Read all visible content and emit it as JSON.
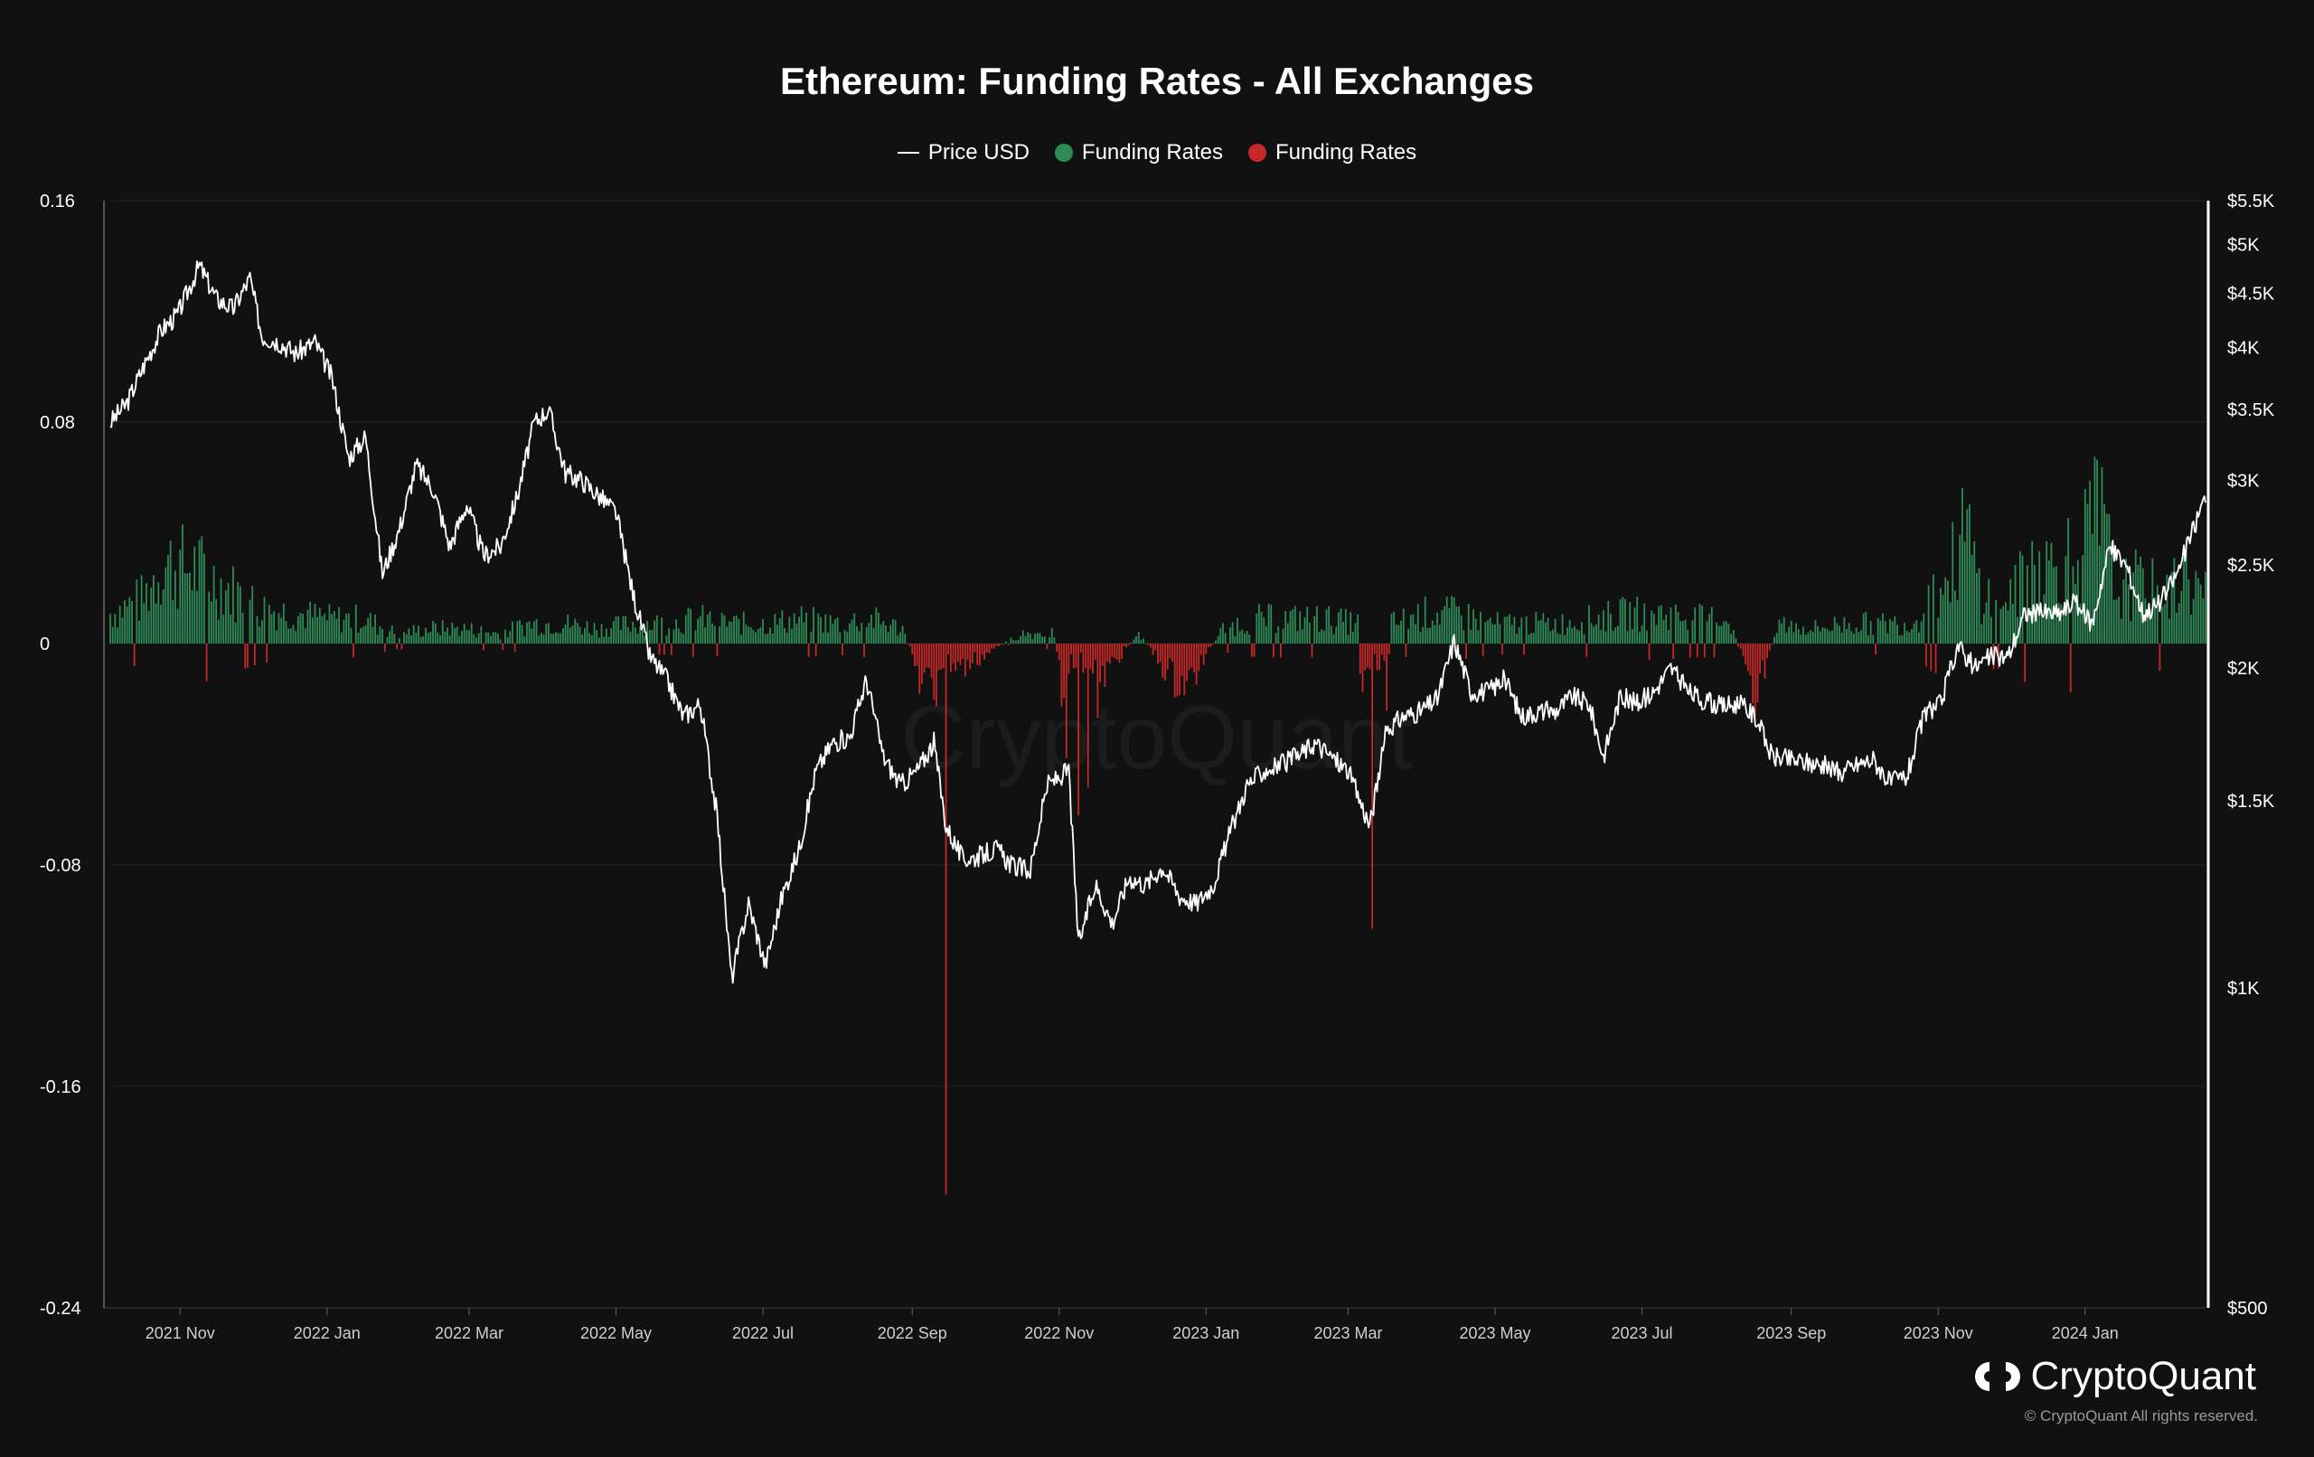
{
  "title": "Ethereum: Funding Rates - All Exchanges",
  "legend": [
    {
      "label": "Price USD",
      "color": "#ffffff",
      "kind": "line"
    },
    {
      "label": "Funding Rates",
      "color": "#2e8b57",
      "kind": "dot"
    },
    {
      "label": "Funding Rates",
      "color": "#c62828",
      "kind": "dot"
    }
  ],
  "watermark": "CryptoQuant",
  "brand": "CryptoQuant",
  "copyright": "© CryptoQuant All rights reserved.",
  "chart_data": {
    "type": "bar+line",
    "title": "Ethereum: Funding Rates - All Exchanges",
    "left_axis": {
      "range": [
        -0.24,
        0.16
      ],
      "ticks": [
        {
          "value": 0.16,
          "label": "0.16"
        },
        {
          "value": 0.08,
          "label": "0.08"
        },
        {
          "value": 0,
          "label": "0"
        },
        {
          "value": -0.08,
          "label": "-0.08"
        },
        {
          "value": -0.16,
          "label": "-0.16"
        },
        {
          "value": -0.24,
          "label": "-0.24"
        }
      ]
    },
    "right_axis": {
      "scale": "log",
      "range": [
        500,
        5500
      ],
      "ticks": [
        {
          "value": 5500,
          "label": "$5.5K"
        },
        {
          "value": 5000,
          "label": "$5K"
        },
        {
          "value": 4500,
          "label": "$4.5K"
        },
        {
          "value": 4000,
          "label": "$4K"
        },
        {
          "value": 3500,
          "label": "$3.5K"
        },
        {
          "value": 3000,
          "label": "$3K"
        },
        {
          "value": 2500,
          "label": "$2.5K"
        },
        {
          "value": 2000,
          "label": "$2K"
        },
        {
          "value": 1500,
          "label": "$1.5K"
        },
        {
          "value": 1000,
          "label": "$1K"
        },
        {
          "value": 500,
          "label": "$500"
        }
      ]
    },
    "x_ticks": [
      {
        "date": "2021-11-01",
        "label": "2021 Nov"
      },
      {
        "date": "2022-01-01",
        "label": "2022 Jan"
      },
      {
        "date": "2022-03-01",
        "label": "2022 Mar"
      },
      {
        "date": "2022-05-01",
        "label": "2022 May"
      },
      {
        "date": "2022-07-01",
        "label": "2022 Jul"
      },
      {
        "date": "2022-09-01",
        "label": "2022 Sep"
      },
      {
        "date": "2022-11-01",
        "label": "2022 Nov"
      },
      {
        "date": "2023-01-01",
        "label": "2023 Jan"
      },
      {
        "date": "2023-03-01",
        "label": "2023 Mar"
      },
      {
        "date": "2023-05-01",
        "label": "2023 May"
      },
      {
        "date": "2023-07-01",
        "label": "2023 Jul"
      },
      {
        "date": "2023-09-01",
        "label": "2023 Sep"
      },
      {
        "date": "2023-11-01",
        "label": "2023 Nov"
      },
      {
        "date": "2024-01-01",
        "label": "2024 Jan"
      }
    ],
    "x_range": [
      "2021-10-03",
      "2024-02-20"
    ],
    "grid": true,
    "series": [
      {
        "name": "Price USD",
        "type": "line",
        "axis": "right",
        "color": "#ffffff",
        "points": [
          [
            "2021-10-03",
            3400
          ],
          [
            "2021-10-10",
            3550
          ],
          [
            "2021-10-17",
            3850
          ],
          [
            "2021-10-24",
            4150
          ],
          [
            "2021-10-31",
            4300
          ],
          [
            "2021-11-09",
            4780
          ],
          [
            "2021-11-16",
            4450
          ],
          [
            "2021-11-23",
            4350
          ],
          [
            "2021-11-30",
            4650
          ],
          [
            "2021-12-05",
            4100
          ],
          [
            "2021-12-12",
            4050
          ],
          [
            "2021-12-19",
            3950
          ],
          [
            "2021-12-27",
            4050
          ],
          [
            "2022-01-03",
            3750
          ],
          [
            "2022-01-10",
            3150
          ],
          [
            "2022-01-17",
            3300
          ],
          [
            "2022-01-24",
            2450
          ],
          [
            "2022-01-31",
            2700
          ],
          [
            "2022-02-07",
            3100
          ],
          [
            "2022-02-14",
            2950
          ],
          [
            "2022-02-21",
            2600
          ],
          [
            "2022-02-28",
            2850
          ],
          [
            "2022-03-07",
            2550
          ],
          [
            "2022-03-14",
            2600
          ],
          [
            "2022-03-21",
            2900
          ],
          [
            "2022-03-28",
            3400
          ],
          [
            "2022-04-03",
            3500
          ],
          [
            "2022-04-10",
            3050
          ],
          [
            "2022-04-17",
            3000
          ],
          [
            "2022-04-24",
            2900
          ],
          [
            "2022-05-01",
            2800
          ],
          [
            "2022-05-08",
            2350
          ],
          [
            "2022-05-15",
            2050
          ],
          [
            "2022-05-22",
            1950
          ],
          [
            "2022-05-29",
            1800
          ],
          [
            "2022-06-05",
            1850
          ],
          [
            "2022-06-12",
            1450
          ],
          [
            "2022-06-18",
            1020
          ],
          [
            "2022-06-25",
            1200
          ],
          [
            "2022-07-02",
            1050
          ],
          [
            "2022-07-09",
            1220
          ],
          [
            "2022-07-16",
            1350
          ],
          [
            "2022-07-23",
            1600
          ],
          [
            "2022-07-30",
            1700
          ],
          [
            "2022-08-06",
            1720
          ],
          [
            "2022-08-13",
            1950
          ],
          [
            "2022-08-20",
            1650
          ],
          [
            "2022-08-27",
            1550
          ],
          [
            "2022-09-03",
            1600
          ],
          [
            "2022-09-10",
            1700
          ],
          [
            "2022-09-15",
            1420
          ],
          [
            "2022-09-22",
            1320
          ],
          [
            "2022-09-29",
            1330
          ],
          [
            "2022-10-06",
            1350
          ],
          [
            "2022-10-13",
            1300
          ],
          [
            "2022-10-20",
            1290
          ],
          [
            "2022-10-27",
            1550
          ],
          [
            "2022-11-05",
            1600
          ],
          [
            "2022-11-09",
            1100
          ],
          [
            "2022-11-16",
            1250
          ],
          [
            "2022-11-23",
            1150
          ],
          [
            "2022-11-30",
            1270
          ],
          [
            "2022-12-07",
            1250
          ],
          [
            "2022-12-14",
            1300
          ],
          [
            "2022-12-21",
            1220
          ],
          [
            "2022-12-28",
            1200
          ],
          [
            "2023-01-04",
            1250
          ],
          [
            "2023-01-11",
            1400
          ],
          [
            "2023-01-18",
            1550
          ],
          [
            "2023-01-25",
            1600
          ],
          [
            "2023-02-01",
            1620
          ],
          [
            "2023-02-08",
            1650
          ],
          [
            "2023-02-15",
            1700
          ],
          [
            "2023-02-22",
            1650
          ],
          [
            "2023-03-01",
            1600
          ],
          [
            "2023-03-10",
            1420
          ],
          [
            "2023-03-17",
            1750
          ],
          [
            "2023-03-24",
            1800
          ],
          [
            "2023-03-31",
            1820
          ],
          [
            "2023-04-07",
            1870
          ],
          [
            "2023-04-14",
            2120
          ],
          [
            "2023-04-21",
            1900
          ],
          [
            "2023-04-28",
            1900
          ],
          [
            "2023-05-05",
            1950
          ],
          [
            "2023-05-12",
            1800
          ],
          [
            "2023-05-19",
            1820
          ],
          [
            "2023-05-26",
            1820
          ],
          [
            "2023-06-02",
            1880
          ],
          [
            "2023-06-09",
            1850
          ],
          [
            "2023-06-15",
            1650
          ],
          [
            "2023-06-22",
            1880
          ],
          [
            "2023-06-29",
            1850
          ],
          [
            "2023-07-06",
            1900
          ],
          [
            "2023-07-13",
            2000
          ],
          [
            "2023-07-20",
            1900
          ],
          [
            "2023-07-27",
            1860
          ],
          [
            "2023-08-03",
            1840
          ],
          [
            "2023-08-10",
            1850
          ],
          [
            "2023-08-17",
            1800
          ],
          [
            "2023-08-24",
            1650
          ],
          [
            "2023-08-31",
            1640
          ],
          [
            "2023-09-07",
            1630
          ],
          [
            "2023-09-14",
            1620
          ],
          [
            "2023-09-21",
            1590
          ],
          [
            "2023-09-28",
            1620
          ],
          [
            "2023-10-05",
            1640
          ],
          [
            "2023-10-12",
            1560
          ],
          [
            "2023-10-19",
            1580
          ],
          [
            "2023-10-26",
            1800
          ],
          [
            "2023-11-02",
            1850
          ],
          [
            "2023-11-09",
            2100
          ],
          [
            "2023-11-16",
            2000
          ],
          [
            "2023-11-23",
            2050
          ],
          [
            "2023-11-30",
            2050
          ],
          [
            "2023-12-07",
            2250
          ],
          [
            "2023-12-14",
            2250
          ],
          [
            "2023-12-21",
            2250
          ],
          [
            "2023-12-28",
            2300
          ],
          [
            "2024-01-04",
            2200
          ],
          [
            "2024-01-11",
            2600
          ],
          [
            "2024-01-18",
            2500
          ],
          [
            "2024-01-25",
            2250
          ],
          [
            "2024-02-01",
            2300
          ],
          [
            "2024-02-08",
            2450
          ],
          [
            "2024-02-15",
            2700
          ],
          [
            "2024-02-20",
            2900
          ]
        ]
      },
      {
        "name": "Funding Rates",
        "type": "bar",
        "axis": "left",
        "color_positive": "#2e8b57",
        "color_negative": "#c62828",
        "daily_points": [
          [
            "2021-10-03",
            0.012
          ],
          [
            "2021-10-17",
            0.018
          ],
          [
            "2021-10-24",
            0.032
          ],
          [
            "2021-11-07",
            0.03
          ],
          [
            "2021-11-21",
            0.022
          ],
          [
            "2021-12-05",
            0.014
          ],
          [
            "2021-12-19",
            0.012
          ],
          [
            "2022-01-02",
            0.01
          ],
          [
            "2022-01-16",
            0.01
          ],
          [
            "2022-01-30",
            0.004
          ],
          [
            "2022-02-13",
            0.006
          ],
          [
            "2022-02-27",
            0.006
          ],
          [
            "2022-03-13",
            0.004
          ],
          [
            "2022-03-27",
            0.008
          ],
          [
            "2022-04-10",
            0.008
          ],
          [
            "2022-04-24",
            0.006
          ],
          [
            "2022-05-08",
            0.008
          ],
          [
            "2022-05-22",
            0.008
          ],
          [
            "2022-06-05",
            0.01
          ],
          [
            "2022-06-19",
            0.008
          ],
          [
            "2022-07-03",
            0.008
          ],
          [
            "2022-07-17",
            0.01
          ],
          [
            "2022-07-31",
            0.008
          ],
          [
            "2022-08-14",
            0.01
          ],
          [
            "2022-08-28",
            0.006
          ],
          [
            "2022-09-04",
            -0.014
          ],
          [
            "2022-09-11",
            -0.02
          ],
          [
            "2022-09-15",
            -0.199
          ],
          [
            "2022-09-22",
            -0.01
          ],
          [
            "2022-10-02",
            -0.004
          ],
          [
            "2022-10-16",
            0.004
          ],
          [
            "2022-10-30",
            0.004
          ],
          [
            "2022-11-09",
            -0.062
          ],
          [
            "2022-11-13",
            -0.052
          ],
          [
            "2022-11-20",
            -0.012
          ],
          [
            "2022-12-04",
            0.004
          ],
          [
            "2022-12-18",
            -0.014
          ],
          [
            "2022-12-25",
            -0.016
          ],
          [
            "2023-01-08",
            0.006
          ],
          [
            "2023-01-22",
            0.01
          ],
          [
            "2023-02-05",
            0.01
          ],
          [
            "2023-02-19",
            0.01
          ],
          [
            "2023-03-05",
            0.008
          ],
          [
            "2023-03-11",
            -0.103
          ],
          [
            "2023-03-19",
            0.008
          ],
          [
            "2023-04-02",
            0.012
          ],
          [
            "2023-04-16",
            0.012
          ],
          [
            "2023-04-30",
            0.008
          ],
          [
            "2023-05-14",
            0.008
          ],
          [
            "2023-05-28",
            0.008
          ],
          [
            "2023-06-11",
            0.01
          ],
          [
            "2023-06-25",
            0.012
          ],
          [
            "2023-07-09",
            0.012
          ],
          [
            "2023-07-23",
            0.01
          ],
          [
            "2023-08-06",
            0.01
          ],
          [
            "2023-08-17",
            -0.02
          ],
          [
            "2023-08-27",
            0.008
          ],
          [
            "2023-09-10",
            0.006
          ],
          [
            "2023-09-24",
            0.008
          ],
          [
            "2023-10-08",
            0.008
          ],
          [
            "2023-10-22",
            0.008
          ],
          [
            "2023-10-29",
            0.02
          ],
          [
            "2023-11-05",
            0.025
          ],
          [
            "2023-11-12",
            0.046
          ],
          [
            "2023-11-19",
            0.02
          ],
          [
            "2023-11-26",
            0.018
          ],
          [
            "2023-12-03",
            0.02
          ],
          [
            "2023-12-10",
            0.034
          ],
          [
            "2023-12-17",
            0.03
          ],
          [
            "2023-12-24",
            0.034
          ],
          [
            "2023-12-31",
            0.038
          ],
          [
            "2024-01-07",
            0.053
          ],
          [
            "2024-01-14",
            0.02
          ],
          [
            "2024-01-21",
            0.024
          ],
          [
            "2024-01-28",
            0.022
          ],
          [
            "2024-02-04",
            0.018
          ],
          [
            "2024-02-11",
            0.03
          ],
          [
            "2024-02-18",
            0.02
          ]
        ]
      }
    ]
  }
}
